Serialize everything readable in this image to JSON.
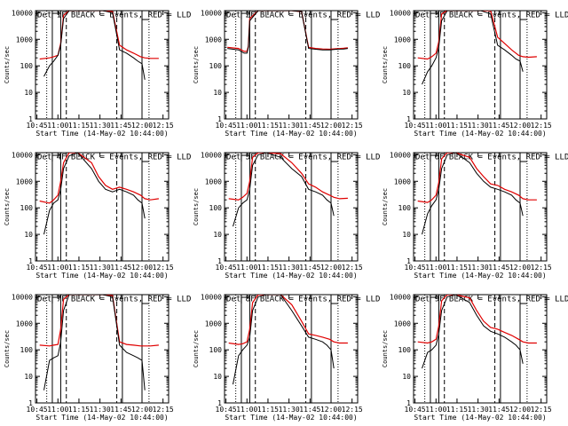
{
  "figure": {
    "ylabel": "Counts/sec",
    "xlabel": "Start Time (14-May-02 10:44:00)",
    "x_ticks": [
      "10:45",
      "11:00",
      "11:15",
      "11:30",
      "11:45",
      "12:00",
      "12:15"
    ],
    "y_ticks": [
      "1",
      "10",
      "100",
      "1000",
      "10000"
    ],
    "legend_black": "BLACK = Events",
    "legend_red": "RED = LLD",
    "colors": {
      "events": "#000000",
      "lld": "#e00000"
    }
  },
  "chart_data": [
    {
      "type": "line",
      "title": "Det 1F BLACK = Events, RED = LLD",
      "xlabel": "Start Time (14-May-02 10:44:00)",
      "ylabel": "Counts/sec",
      "xlim": [
        0,
        95
      ],
      "ylim": [
        1,
        12000
      ],
      "yscale": "log",
      "x_ticks": [
        "10:45",
        "11:00",
        "11:15",
        "11:30",
        "11:45",
        "12:00",
        "12:15"
      ],
      "series": [
        {
          "x": [
            6,
            10,
            13,
            16,
            18,
            20,
            24,
            30,
            40,
            48,
            55,
            60,
            65,
            70,
            73,
            76,
            78
          ],
          "values": [
            40,
            100,
            150,
            250,
            600,
            6000,
            12000,
            12000,
            12000,
            12000,
            10000,
            400,
            300,
            200,
            150,
            120,
            30
          ]
        },
        {
          "x": [
            3,
            10,
            13,
            16,
            18,
            20,
            24,
            30,
            40,
            48,
            55,
            60,
            65,
            70,
            75,
            78,
            82,
            88
          ],
          "values": [
            180,
            200,
            220,
            250,
            700,
            8000,
            12000,
            12000,
            12000,
            12000,
            11000,
            600,
            400,
            300,
            220,
            200,
            190,
            190
          ]
        }
      ]
    },
    {
      "type": "line",
      "title": "Det 2F BLACK = Events, RED = LLD",
      "xlabel": "Start Time (14-May-02 10:44:00)",
      "ylabel": "Counts/sec",
      "xlim": [
        0,
        95
      ],
      "ylim": [
        1,
        12000
      ],
      "yscale": "log",
      "x_ticks": [
        "10:45",
        "11:00",
        "11:15",
        "11:30",
        "11:45",
        "12:00",
        "12:15"
      ],
      "series": [
        {
          "x": [
            2,
            10,
            14,
            16,
            17,
            18,
            24,
            30,
            40,
            48,
            55,
            60,
            65,
            70,
            75,
            80,
            85,
            88
          ],
          "values": [
            450,
            400,
            300,
            300,
            500,
            5000,
            12000,
            12000,
            12000,
            12000,
            11000,
            450,
            420,
            400,
            400,
            420,
            430,
            450
          ]
        },
        {
          "x": [
            2,
            10,
            14,
            16,
            17,
            18,
            24,
            30,
            40,
            48,
            55,
            60,
            65,
            70,
            75,
            80,
            85,
            88
          ],
          "values": [
            500,
            450,
            350,
            350,
            550,
            6000,
            12000,
            12000,
            12000,
            12000,
            11000,
            500,
            450,
            430,
            420,
            440,
            460,
            480
          ]
        }
      ]
    },
    {
      "type": "line",
      "title": "Det 3F BLACK = Events, RED = LLD",
      "xlabel": "Start Time (14-May-02 10:44:00)",
      "ylabel": "Counts/sec",
      "xlim": [
        0,
        95
      ],
      "ylim": [
        1,
        12000
      ],
      "yscale": "log",
      "x_ticks": [
        "10:45",
        "11:00",
        "11:15",
        "11:30",
        "11:45",
        "12:00",
        "12:15"
      ],
      "series": [
        {
          "x": [
            6,
            10,
            13,
            16,
            18,
            20,
            24,
            30,
            40,
            48,
            55,
            60,
            65,
            70,
            73,
            76,
            78
          ],
          "values": [
            20,
            60,
            100,
            200,
            500,
            5000,
            12000,
            12000,
            12000,
            12000,
            9000,
            600,
            400,
            250,
            180,
            150,
            60
          ]
        },
        {
          "x": [
            3,
            10,
            13,
            16,
            18,
            20,
            24,
            30,
            40,
            48,
            55,
            60,
            65,
            70,
            75,
            78,
            82,
            88
          ],
          "values": [
            200,
            180,
            220,
            300,
            800,
            9000,
            12000,
            12000,
            12000,
            12000,
            12000,
            1200,
            700,
            400,
            250,
            220,
            210,
            220
          ]
        }
      ]
    },
    {
      "type": "line",
      "title": "Det 4F BLACK = Events, RED = LLD",
      "xlabel": "Start Time (14-May-02 10:44:00)",
      "ylabel": "Counts/sec",
      "xlim": [
        0,
        95
      ],
      "ylim": [
        1,
        12000
      ],
      "yscale": "log",
      "x_ticks": [
        "10:45",
        "11:00",
        "11:15",
        "11:30",
        "11:45",
        "12:00",
        "12:15"
      ],
      "series": [
        {
          "x": [
            6,
            10,
            13,
            16,
            18,
            20,
            24,
            30,
            40,
            45,
            50,
            55,
            60,
            65,
            70,
            73,
            76,
            78
          ],
          "values": [
            10,
            80,
            150,
            200,
            500,
            3000,
            9000,
            12000,
            3000,
            1000,
            500,
            400,
            500,
            400,
            300,
            200,
            150,
            40
          ]
        },
        {
          "x": [
            3,
            10,
            13,
            16,
            18,
            20,
            24,
            30,
            40,
            45,
            50,
            55,
            60,
            65,
            70,
            75,
            78,
            82,
            88
          ],
          "values": [
            180,
            150,
            200,
            300,
            1000,
            5000,
            12000,
            12000,
            5000,
            1500,
            700,
            500,
            600,
            500,
            400,
            300,
            220,
            200,
            220
          ]
        }
      ]
    },
    {
      "type": "line",
      "title": "Det 5F BLACK = Events, RED = LLD",
      "xlabel": "Start Time (14-May-02 10:44:00)",
      "ylabel": "Counts/sec",
      "xlim": [
        0,
        95
      ],
      "ylim": [
        1,
        12000
      ],
      "yscale": "log",
      "x_ticks": [
        "10:45",
        "11:00",
        "11:15",
        "11:30",
        "11:45",
        "12:00",
        "12:15"
      ],
      "series": [
        {
          "x": [
            6,
            10,
            13,
            16,
            18,
            20,
            24,
            30,
            40,
            48,
            55,
            60,
            65,
            70,
            73,
            76,
            78
          ],
          "values": [
            20,
            100,
            150,
            200,
            500,
            4000,
            10000,
            12000,
            8000,
            3000,
            1500,
            500,
            400,
            300,
            200,
            150,
            50
          ]
        },
        {
          "x": [
            3,
            10,
            13,
            16,
            18,
            20,
            24,
            30,
            40,
            48,
            55,
            60,
            65,
            70,
            75,
            78,
            82,
            88
          ],
          "values": [
            220,
            200,
            250,
            350,
            1000,
            8000,
            12000,
            12000,
            11000,
            5000,
            2000,
            800,
            600,
            400,
            300,
            250,
            220,
            230
          ]
        }
      ]
    },
    {
      "type": "line",
      "title": "Det 6F BLACK = Events, RED = LLD",
      "xlabel": "Start Time (14-May-02 10:44:00)",
      "ylabel": "Counts/sec",
      "xlim": [
        0,
        95
      ],
      "ylim": [
        1,
        12000
      ],
      "yscale": "log",
      "x_ticks": [
        "10:45",
        "11:00",
        "11:15",
        "11:30",
        "11:45",
        "12:00",
        "12:15"
      ],
      "series": [
        {
          "x": [
            6,
            10,
            13,
            16,
            18,
            20,
            24,
            30,
            40,
            45,
            50,
            55,
            60,
            65,
            70,
            73,
            76,
            78
          ],
          "values": [
            10,
            60,
            120,
            200,
            500,
            3000,
            10000,
            12000,
            5000,
            2000,
            1000,
            600,
            500,
            400,
            300,
            200,
            150,
            50
          ]
        },
        {
          "x": [
            3,
            10,
            13,
            16,
            18,
            20,
            24,
            30,
            40,
            45,
            50,
            55,
            60,
            65,
            70,
            75,
            78,
            82,
            88
          ],
          "values": [
            180,
            160,
            200,
            300,
            900,
            7000,
            12000,
            12000,
            8000,
            3000,
            1500,
            800,
            700,
            500,
            400,
            300,
            220,
            200,
            200
          ]
        }
      ]
    },
    {
      "type": "line",
      "title": "Det 7F BLACK = Events, RED = LLD",
      "xlabel": "Start Time (14-May-02 10:44:00)",
      "ylabel": "Counts/sec",
      "xlim": [
        0,
        95
      ],
      "ylim": [
        1,
        12000
      ],
      "yscale": "log",
      "x_ticks": [
        "10:45",
        "11:00",
        "11:15",
        "11:30",
        "11:45",
        "12:00",
        "12:15"
      ],
      "series": [
        {
          "x": [
            6,
            10,
            13,
            16,
            18,
            20,
            24,
            30,
            40,
            48,
            55,
            60,
            65,
            70,
            73,
            76,
            78
          ],
          "values": [
            3,
            40,
            50,
            60,
            200,
            3000,
            12000,
            12000,
            12000,
            12000,
            10000,
            150,
            80,
            60,
            50,
            40,
            3
          ]
        },
        {
          "x": [
            3,
            10,
            13,
            16,
            18,
            20,
            24,
            30,
            40,
            48,
            55,
            60,
            65,
            70,
            75,
            78,
            82,
            88
          ],
          "values": [
            150,
            140,
            150,
            160,
            600,
            8000,
            12000,
            12000,
            12000,
            12000,
            11000,
            200,
            160,
            150,
            140,
            140,
            140,
            150
          ]
        }
      ]
    },
    {
      "type": "line",
      "title": "Det 8F BLACK = Events, RED = LLD",
      "xlabel": "Start Time (14-May-02 10:44:00)",
      "ylabel": "Counts/sec",
      "xlim": [
        0,
        95
      ],
      "ylim": [
        1,
        12000
      ],
      "yscale": "log",
      "x_ticks": [
        "10:45",
        "11:00",
        "11:15",
        "11:30",
        "11:45",
        "12:00",
        "12:15"
      ],
      "series": [
        {
          "x": [
            6,
            10,
            13,
            16,
            18,
            20,
            24,
            30,
            40,
            48,
            55,
            60,
            65,
            70,
            73,
            76,
            78
          ],
          "values": [
            5,
            60,
            100,
            150,
            300,
            3000,
            10000,
            12000,
            12000,
            3000,
            800,
            300,
            250,
            200,
            150,
            100,
            20
          ]
        },
        {
          "x": [
            3,
            10,
            13,
            16,
            18,
            20,
            24,
            30,
            40,
            48,
            55,
            60,
            65,
            70,
            75,
            78,
            82,
            88
          ],
          "values": [
            180,
            160,
            170,
            200,
            600,
            6000,
            12000,
            12000,
            12000,
            5000,
            1200,
            400,
            350,
            300,
            250,
            200,
            180,
            180
          ]
        }
      ]
    },
    {
      "type": "line",
      "title": "Det 9F BLACK = Events, RED = LLD",
      "xlabel": "Start Time (14-May-02 10:44:00)",
      "ylabel": "Counts/sec",
      "xlim": [
        0,
        95
      ],
      "ylim": [
        1,
        12000
      ],
      "yscale": "log",
      "x_ticks": [
        "10:45",
        "11:00",
        "11:15",
        "11:30",
        "11:45",
        "12:00",
        "12:15"
      ],
      "series": [
        {
          "x": [
            6,
            10,
            13,
            16,
            18,
            20,
            24,
            30,
            40,
            45,
            50,
            55,
            60,
            65,
            70,
            73,
            76,
            78
          ],
          "values": [
            20,
            80,
            100,
            150,
            400,
            3000,
            10000,
            12000,
            6000,
            2000,
            800,
            500,
            400,
            300,
            200,
            150,
            100,
            30
          ]
        },
        {
          "x": [
            3,
            10,
            13,
            16,
            18,
            20,
            24,
            30,
            40,
            45,
            50,
            55,
            60,
            65,
            70,
            75,
            78,
            82,
            88
          ],
          "values": [
            200,
            180,
            200,
            250,
            800,
            7000,
            12000,
            12000,
            9000,
            3000,
            1200,
            700,
            600,
            450,
            350,
            250,
            200,
            180,
            180
          ]
        }
      ]
    }
  ]
}
